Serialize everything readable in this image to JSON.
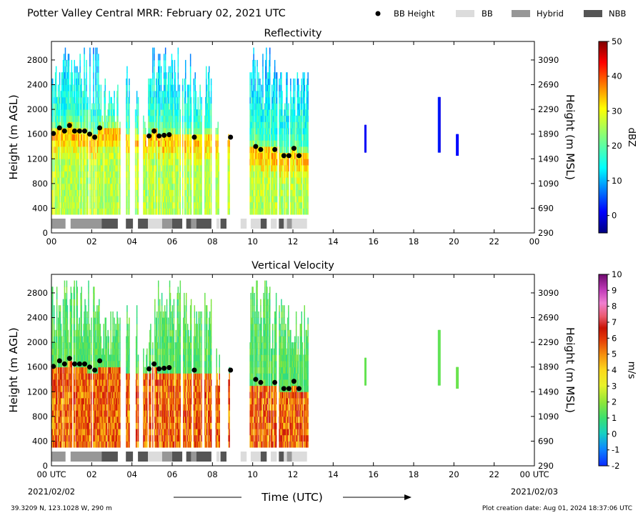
{
  "header": {
    "title": "Potter Valley Central MRR:  February 02, 2021 UTC"
  },
  "legend": [
    {
      "label": "BB Height",
      "marker": "dot",
      "color": "#000000"
    },
    {
      "label": "BB",
      "marker": "bar",
      "color": "#dcdcdc"
    },
    {
      "label": "Hybrid",
      "marker": "bar",
      "color": "#979797"
    },
    {
      "label": "NBB",
      "marker": "bar",
      "color": "#555555"
    }
  ],
  "footer": {
    "location": "39.3209 N, 123.1028 W, 290 m",
    "creation": "Plot creation date: Aug 01, 2024 18:37:06 UTC",
    "xlabel": "Time (UTC)",
    "start_date": "2021/02/02",
    "end_date": "2021/02/03"
  },
  "chart_data": [
    {
      "type": "heatmap",
      "title": "Reflectivity",
      "ylabel": "Height (m AGL)",
      "ylabel_right": "Height (m MSL)",
      "xlim": [
        0,
        24
      ],
      "ylim": [
        0,
        3100
      ],
      "x_ticks": [
        "00",
        "02",
        "04",
        "06",
        "08",
        "10",
        "12",
        "14",
        "16",
        "18",
        "20",
        "22",
        "00"
      ],
      "y_ticks": [
        0,
        400,
        800,
        1200,
        1600,
        2000,
        2400,
        2800
      ],
      "y_ticks_right": [
        290,
        690,
        1090,
        1490,
        1890,
        2290,
        2690,
        3090
      ],
      "colorbar": {
        "label": "dBZ",
        "min": -5,
        "max": 50,
        "ticks": [
          0,
          10,
          20,
          30,
          40,
          50
        ],
        "scheme": "jet"
      },
      "bright_band": {
        "times": [
          0.1,
          0.4,
          0.65,
          0.9,
          1.15,
          1.4,
          1.65,
          1.9,
          2.15,
          2.4,
          4.85,
          5.1,
          5.35,
          5.6,
          5.85,
          7.1,
          8.9,
          10.15,
          10.4,
          11.1,
          11.55,
          11.8,
          12.05,
          12.3
        ],
        "heights": [
          1610,
          1700,
          1650,
          1740,
          1650,
          1650,
          1650,
          1600,
          1550,
          1700,
          1570,
          1650,
          1570,
          1580,
          1590,
          1550,
          1550,
          1400,
          1350,
          1350,
          1250,
          1250,
          1370,
          1250
        ]
      },
      "bb_types": [
        {
          "start": 0.0,
          "end": 0.7,
          "type": "Hybrid"
        },
        {
          "start": 0.95,
          "end": 2.5,
          "type": "Hybrid"
        },
        {
          "start": 2.5,
          "end": 3.3,
          "type": "NBB"
        },
        {
          "start": 3.7,
          "end": 4.05,
          "type": "NBB"
        },
        {
          "start": 4.3,
          "end": 4.8,
          "type": "NBB"
        },
        {
          "start": 4.8,
          "end": 5.5,
          "type": "BB"
        },
        {
          "start": 5.5,
          "end": 6.0,
          "type": "Hybrid"
        },
        {
          "start": 6.0,
          "end": 6.5,
          "type": "NBB"
        },
        {
          "start": 6.7,
          "end": 6.95,
          "type": "NBB"
        },
        {
          "start": 6.95,
          "end": 7.2,
          "type": "Hybrid"
        },
        {
          "start": 7.2,
          "end": 7.95,
          "type": "NBB"
        },
        {
          "start": 8.2,
          "end": 8.35,
          "type": "BB"
        },
        {
          "start": 8.4,
          "end": 8.7,
          "type": "NBB"
        },
        {
          "start": 9.4,
          "end": 9.7,
          "type": "BB"
        },
        {
          "start": 9.9,
          "end": 10.4,
          "type": "BB"
        },
        {
          "start": 10.4,
          "end": 10.7,
          "type": "NBB"
        },
        {
          "start": 10.9,
          "end": 11.2,
          "type": "BB"
        },
        {
          "start": 11.3,
          "end": 11.55,
          "type": "NBB"
        },
        {
          "start": 11.55,
          "end": 11.7,
          "type": "BB"
        },
        {
          "start": 11.7,
          "end": 11.95,
          "type": "Hybrid"
        },
        {
          "start": 11.95,
          "end": 12.7,
          "type": "BB"
        }
      ]
    },
    {
      "type": "heatmap",
      "title": "Vertical Velocity",
      "ylabel": "Height (m AGL)",
      "ylabel_right": "Height (m MSL)",
      "xlim": [
        0,
        24
      ],
      "ylim": [
        0,
        3100
      ],
      "x_ticks": [
        "00 UTC",
        "02",
        "04",
        "06",
        "08",
        "10",
        "12",
        "14",
        "16",
        "18",
        "20",
        "22",
        "00 UTC"
      ],
      "y_ticks": [
        0,
        400,
        800,
        1200,
        1600,
        2000,
        2400,
        2800
      ],
      "y_ticks_right": [
        290,
        690,
        1090,
        1490,
        1890,
        2290,
        2690,
        3090
      ],
      "colorbar": {
        "label": "m/s",
        "min": -2,
        "max": 10,
        "ticks": [
          -2,
          -1,
          0,
          1,
          2,
          3,
          4,
          5,
          6,
          7,
          8,
          9,
          10
        ],
        "scheme": "velocity"
      },
      "bright_band": {
        "times": [
          0.1,
          0.4,
          0.65,
          0.9,
          1.15,
          1.4,
          1.65,
          1.9,
          2.15,
          2.4,
          4.85,
          5.1,
          5.35,
          5.6,
          5.85,
          7.1,
          8.9,
          10.15,
          10.4,
          11.1,
          11.55,
          11.8,
          12.05,
          12.3
        ],
        "heights": [
          1610,
          1700,
          1650,
          1740,
          1650,
          1650,
          1650,
          1600,
          1550,
          1700,
          1570,
          1650,
          1570,
          1580,
          1590,
          1550,
          1550,
          1400,
          1350,
          1350,
          1250,
          1250,
          1370,
          1250
        ]
      },
      "bb_types": [
        {
          "start": 0.0,
          "end": 0.7,
          "type": "Hybrid"
        },
        {
          "start": 0.95,
          "end": 2.5,
          "type": "Hybrid"
        },
        {
          "start": 2.5,
          "end": 3.3,
          "type": "NBB"
        },
        {
          "start": 3.7,
          "end": 4.05,
          "type": "NBB"
        },
        {
          "start": 4.3,
          "end": 4.8,
          "type": "NBB"
        },
        {
          "start": 4.8,
          "end": 5.5,
          "type": "BB"
        },
        {
          "start": 5.5,
          "end": 6.0,
          "type": "Hybrid"
        },
        {
          "start": 6.0,
          "end": 6.5,
          "type": "NBB"
        },
        {
          "start": 6.7,
          "end": 6.95,
          "type": "NBB"
        },
        {
          "start": 6.95,
          "end": 7.2,
          "type": "Hybrid"
        },
        {
          "start": 7.2,
          "end": 7.95,
          "type": "NBB"
        },
        {
          "start": 8.2,
          "end": 8.35,
          "type": "BB"
        },
        {
          "start": 8.4,
          "end": 8.7,
          "type": "NBB"
        },
        {
          "start": 9.4,
          "end": 9.7,
          "type": "BB"
        },
        {
          "start": 9.9,
          "end": 10.4,
          "type": "BB"
        },
        {
          "start": 10.4,
          "end": 10.7,
          "type": "NBB"
        },
        {
          "start": 10.9,
          "end": 11.2,
          "type": "BB"
        },
        {
          "start": 11.3,
          "end": 11.55,
          "type": "NBB"
        },
        {
          "start": 11.55,
          "end": 11.7,
          "type": "BB"
        },
        {
          "start": 11.7,
          "end": 11.95,
          "type": "Hybrid"
        },
        {
          "start": 11.95,
          "end": 12.7,
          "type": "BB"
        }
      ]
    }
  ]
}
